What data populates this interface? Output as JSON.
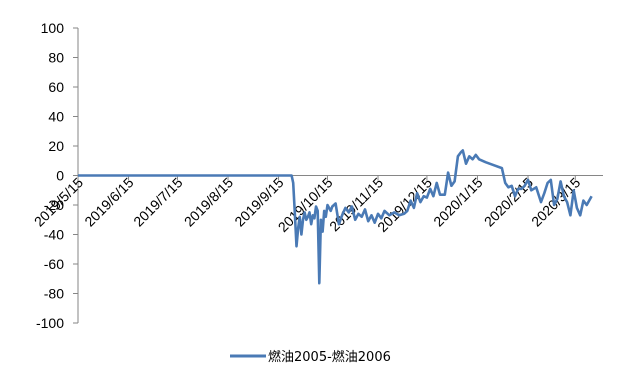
{
  "chart_data": {
    "type": "line",
    "title": "",
    "xlabel": "",
    "ylabel": "",
    "ylim": [
      -100,
      100
    ],
    "y_ticks": [
      100,
      80,
      60,
      40,
      20,
      0,
      -20,
      -40,
      -60,
      -80,
      -100
    ],
    "x_ticks": [
      "2019/5/15",
      "2019/6/15",
      "2019/7/15",
      "2019/8/15",
      "2019/9/15",
      "2019/10/15",
      "2019/11/15",
      "2019/12/15",
      "2020/1/15",
      "2020/2/15",
      "2020/3/15"
    ],
    "xlim": [
      "2019/5/15",
      "2020/4/1"
    ],
    "grid": false,
    "legend_position": "bottom",
    "series": [
      {
        "name": "燃油2005-燃油2006",
        "color": "#4a7ab5",
        "points": [
          [
            "2019/5/15",
            0
          ],
          [
            "2019/9/23",
            0
          ],
          [
            "2019/9/24",
            -5
          ],
          [
            "2019/9/25",
            -25
          ],
          [
            "2019/9/26",
            -48
          ],
          [
            "2019/9/27",
            -36
          ],
          [
            "2019/9/28",
            -28
          ],
          [
            "2019/9/29",
            -40
          ],
          [
            "2019/9/30",
            -30
          ],
          [
            "2019/10/1",
            -25
          ],
          [
            "2019/10/2",
            -30
          ],
          [
            "2019/10/3",
            -28
          ],
          [
            "2019/10/4",
            -25
          ],
          [
            "2019/10/5",
            -33
          ],
          [
            "2019/10/6",
            -27
          ],
          [
            "2019/10/7",
            -29
          ],
          [
            "2019/10/8",
            -21
          ],
          [
            "2019/10/9",
            -24
          ],
          [
            "2019/10/10",
            -73
          ],
          [
            "2019/10/11",
            -30
          ],
          [
            "2019/10/12",
            -38
          ],
          [
            "2019/10/13",
            -24
          ],
          [
            "2019/10/14",
            -28
          ],
          [
            "2019/10/15",
            -20
          ],
          [
            "2019/10/17",
            -24
          ],
          [
            "2019/10/18",
            -21
          ],
          [
            "2019/10/20",
            -19
          ],
          [
            "2019/10/22",
            -33
          ],
          [
            "2019/10/24",
            -27
          ],
          [
            "2019/10/26",
            -22
          ],
          [
            "2019/10/28",
            -25
          ],
          [
            "2019/10/30",
            -21
          ],
          [
            "2019/11/1",
            -30
          ],
          [
            "2019/11/3",
            -26
          ],
          [
            "2019/11/5",
            -28
          ],
          [
            "2019/11/7",
            -23
          ],
          [
            "2019/11/9",
            -31
          ],
          [
            "2019/11/11",
            -27
          ],
          [
            "2019/11/13",
            -32
          ],
          [
            "2019/11/15",
            -26
          ],
          [
            "2019/11/17",
            -29
          ],
          [
            "2019/11/19",
            -24
          ],
          [
            "2019/11/22",
            -27
          ],
          [
            "2019/11/25",
            -25
          ],
          [
            "2019/11/28",
            -27
          ],
          [
            "2019/12/1",
            -26
          ],
          [
            "2019/12/3",
            -24
          ],
          [
            "2019/12/5",
            -17
          ],
          [
            "2019/12/7",
            -22
          ],
          [
            "2019/12/9",
            -12
          ],
          [
            "2019/12/11",
            -18
          ],
          [
            "2019/12/13",
            -14
          ],
          [
            "2019/12/15",
            -15
          ],
          [
            "2019/12/17",
            -9
          ],
          [
            "2019/12/19",
            -14
          ],
          [
            "2019/12/21",
            -5
          ],
          [
            "2019/12/23",
            -13
          ],
          [
            "2019/12/26",
            -13
          ],
          [
            "2019/12/28",
            2
          ],
          [
            "2019/12/30",
            -7
          ],
          [
            "2020/1/1",
            -4
          ],
          [
            "2020/1/3",
            13
          ],
          [
            "2020/1/5",
            16
          ],
          [
            "2020/1/6",
            17
          ],
          [
            "2020/1/8",
            8
          ],
          [
            "2020/1/10",
            13
          ],
          [
            "2020/1/12",
            11
          ],
          [
            "2020/1/14",
            14
          ],
          [
            "2020/1/16",
            11
          ],
          [
            "2020/1/20",
            9
          ],
          [
            "2020/1/25",
            7
          ],
          [
            "2020/1/30",
            5
          ],
          [
            "2020/2/1",
            -5
          ],
          [
            "2020/2/3",
            -8
          ],
          [
            "2020/2/5",
            -7
          ],
          [
            "2020/2/7",
            -14
          ],
          [
            "2020/2/9",
            -9
          ],
          [
            "2020/2/11",
            -9
          ],
          [
            "2020/2/13",
            -7
          ],
          [
            "2020/2/15",
            -3
          ],
          [
            "2020/2/17",
            -10
          ],
          [
            "2020/2/20",
            -8
          ],
          [
            "2020/2/23",
            -18
          ],
          [
            "2020/2/25",
            -12
          ],
          [
            "2020/2/27",
            -5
          ],
          [
            "2020/2/29",
            -3
          ],
          [
            "2020/3/2",
            -20
          ],
          [
            "2020/3/4",
            -16
          ],
          [
            "2020/3/6",
            -4
          ],
          [
            "2020/3/8",
            -14
          ],
          [
            "2020/3/10",
            -18
          ],
          [
            "2020/3/12",
            -27
          ],
          [
            "2020/3/14",
            -10
          ],
          [
            "2020/3/16",
            -22
          ],
          [
            "2020/3/18",
            -27
          ],
          [
            "2020/3/20",
            -17
          ],
          [
            "2020/3/22",
            -20
          ],
          [
            "2020/3/25",
            -14
          ]
        ]
      }
    ]
  }
}
